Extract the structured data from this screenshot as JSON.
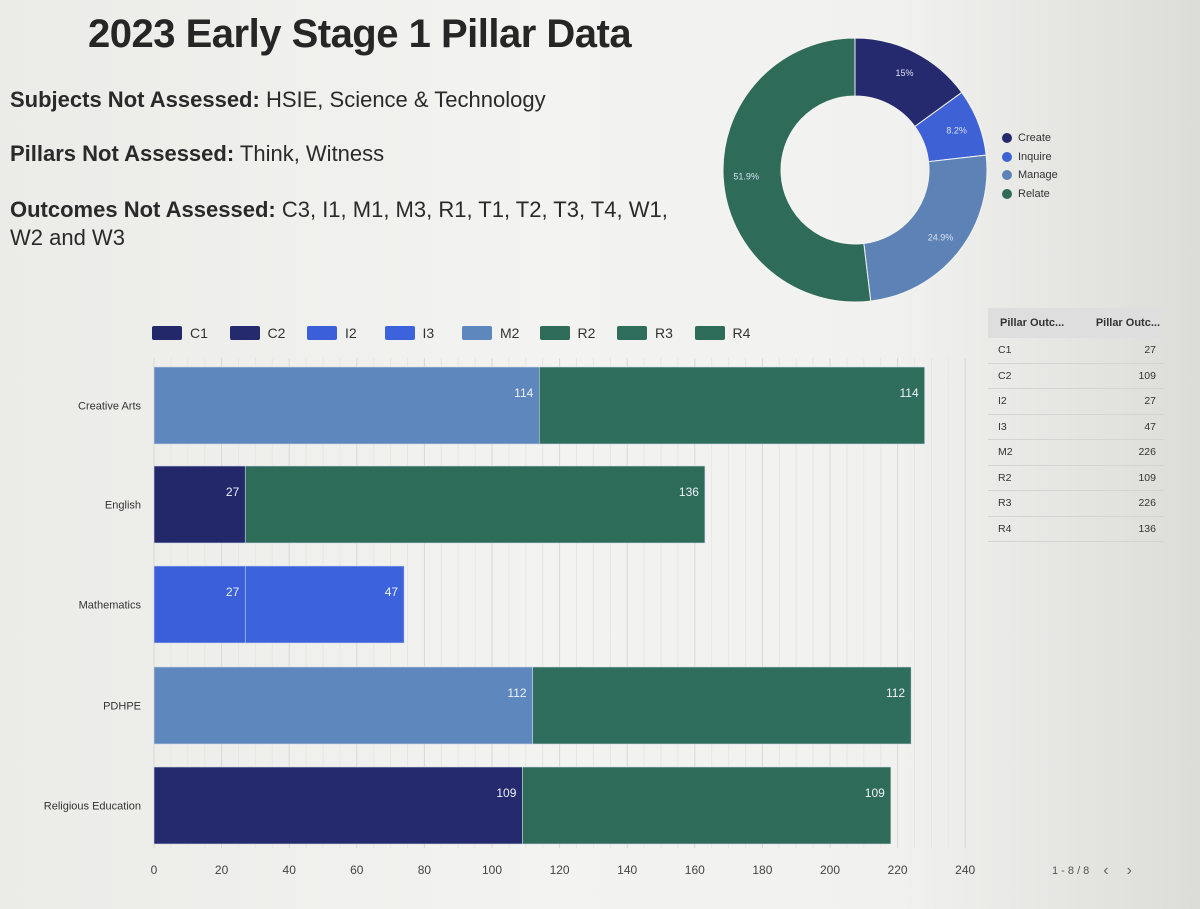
{
  "title": "2023 Early Stage 1 Pillar Data",
  "info": {
    "subjects_label": "Subjects Not Assessed:",
    "subjects_value": "HSIE, Science & Technology",
    "pillars_label": "Pillars Not Assessed:",
    "pillars_value": "Think, Witness",
    "outcomes_label": "Outcomes Not Assessed:",
    "outcomes_value": "C3, I1, M1, M3, R1, T1, T2, T3, T4, W1, W2 and W3"
  },
  "chart_data": [
    {
      "type": "pie",
      "variant": "donut",
      "title": "",
      "categories": [
        "Create",
        "Inquire",
        "Manage",
        "Relate"
      ],
      "values": [
        15.0,
        8.2,
        24.9,
        51.9
      ],
      "labels": [
        "15%",
        "8.2%",
        "24.9%",
        "51.9%"
      ],
      "colors": [
        "#252a6e",
        "#3e62d6",
        "#5d83b6",
        "#2f6b59"
      ],
      "legend": "right"
    },
    {
      "type": "bar",
      "orientation": "horizontal",
      "stacked": true,
      "title": "",
      "categories": [
        "Creative Arts",
        "English",
        "Mathematics",
        "PDHPE",
        "Religious Education"
      ],
      "series": [
        {
          "name": "C1",
          "color": "#23286b",
          "values": [
            0,
            27,
            0,
            0,
            0
          ]
        },
        {
          "name": "C2",
          "color": "#252a6e",
          "values": [
            0,
            0,
            0,
            0,
            109
          ]
        },
        {
          "name": "I2",
          "color": "#3a5fd9",
          "values": [
            0,
            0,
            27,
            0,
            0
          ]
        },
        {
          "name": "I3",
          "color": "#3d63dc",
          "values": [
            0,
            0,
            47,
            0,
            0
          ]
        },
        {
          "name": "M2",
          "color": "#5e87bd",
          "values": [
            114,
            0,
            0,
            112,
            0
          ]
        },
        {
          "name": "R2",
          "color": "#2f6b59",
          "values": [
            0,
            0,
            0,
            0,
            109
          ]
        },
        {
          "name": "R3",
          "color": "#2f6e5c",
          "values": [
            114,
            0,
            0,
            112,
            0
          ]
        },
        {
          "name": "R4",
          "color": "#2e6c5a",
          "values": [
            0,
            136,
            0,
            0,
            0
          ]
        }
      ],
      "xlim": [
        0,
        240
      ],
      "xticks": [
        0,
        20,
        40,
        60,
        80,
        100,
        120,
        140,
        160,
        180,
        200,
        220,
        240
      ],
      "legend": "top"
    }
  ],
  "table": {
    "headers": [
      "Pillar Outc...",
      "Pillar Outc..."
    ],
    "rows": [
      {
        "code": "C1",
        "count": "27"
      },
      {
        "code": "C2",
        "count": "109"
      },
      {
        "code": "I2",
        "count": "27"
      },
      {
        "code": "I3",
        "count": "47"
      },
      {
        "code": "M2",
        "count": "226"
      },
      {
        "code": "R2",
        "count": "109"
      },
      {
        "code": "R3",
        "count": "226"
      },
      {
        "code": "R4",
        "count": "136"
      }
    ],
    "pagination": "1 - 8 / 8",
    "prev": "‹",
    "next": "›"
  }
}
